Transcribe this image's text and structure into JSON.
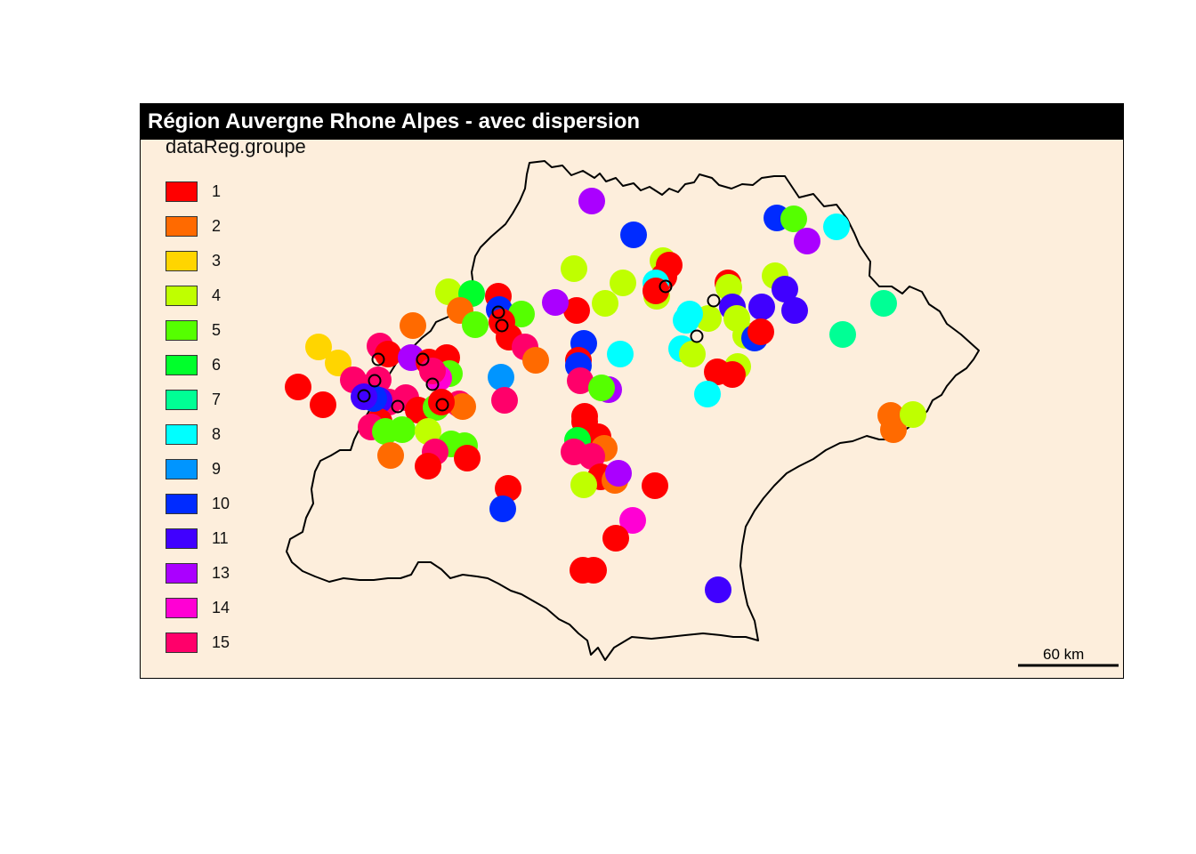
{
  "title": "Région Auvergne Rhone Alpes - avec dispersion",
  "legend": {
    "title": "dataReg.groupe",
    "items": [
      {
        "label": "1",
        "color": "#ff0000"
      },
      {
        "label": "2",
        "color": "#ff6a00"
      },
      {
        "label": "3",
        "color": "#ffd500"
      },
      {
        "label": "4",
        "color": "#bfff00"
      },
      {
        "label": "5",
        "color": "#55ff00"
      },
      {
        "label": "6",
        "color": "#00ff2b"
      },
      {
        "label": "7",
        "color": "#00ff95"
      },
      {
        "label": "8",
        "color": "#00ffff"
      },
      {
        "label": "9",
        "color": "#0095ff"
      },
      {
        "label": "10",
        "color": "#002bff"
      },
      {
        "label": "11",
        "color": "#4000ff"
      },
      {
        "label": "13",
        "color": "#aa00ff"
      },
      {
        "label": "14",
        "color": "#ff00d4"
      },
      {
        "label": "15",
        "color": "#ff006a"
      }
    ]
  },
  "scale_bar": {
    "label": "60 km"
  },
  "colors": {
    "panel_background": "#fdeedc",
    "title_background": "#000000",
    "title_text": "#ffffff",
    "outline": "#000000"
  }
}
